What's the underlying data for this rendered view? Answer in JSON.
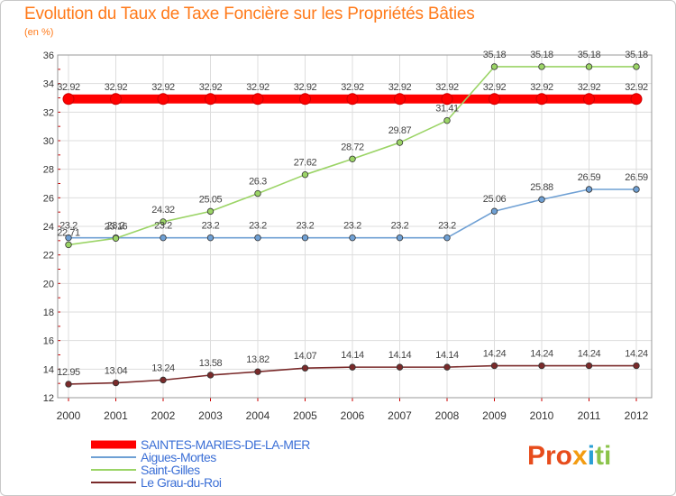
{
  "chart_data": {
    "type": "line",
    "title": "Evolution du Taux de Taxe Foncière sur les Propriétés Bâties",
    "subtitle": "(en %)",
    "x": [
      "2000",
      "2001",
      "2002",
      "2003",
      "2004",
      "2005",
      "2006",
      "2007",
      "2008",
      "2009",
      "2010",
      "2011",
      "2012"
    ],
    "ylim": [
      12,
      36
    ],
    "yticks": [
      12,
      14,
      16,
      18,
      20,
      22,
      24,
      26,
      28,
      30,
      32,
      34,
      36
    ],
    "grid": true,
    "legend_placement": "bottom-left",
    "series": [
      {
        "name": "SAINTES-MARIES-DE-LA-MER",
        "color": "#ff0000",
        "values": [
          32.92,
          32.92,
          32.92,
          32.92,
          32.92,
          32.92,
          32.92,
          32.92,
          32.92,
          32.92,
          32.92,
          32.92,
          32.92
        ],
        "labels": [
          "32.92",
          "32.92",
          "32.92",
          "32.92",
          "32.92",
          "32.92",
          "32.92",
          "32.92",
          "32.92",
          "32.92",
          "32.92",
          "32.92",
          "32.92"
        ]
      },
      {
        "name": "Aigues-Mortes",
        "color": "#6fa0d4",
        "values": [
          23.2,
          23.2,
          23.2,
          23.2,
          23.2,
          23.2,
          23.2,
          23.2,
          23.2,
          25.06,
          25.88,
          26.59,
          26.59
        ],
        "labels": [
          "23.2",
          "23.2",
          "23.2",
          "23.2",
          "23.2",
          "23.2",
          "23.2",
          "23.2",
          "23.2",
          "25.06",
          "25.88",
          "26.59",
          "26.59"
        ]
      },
      {
        "name": "Saint-Gilles",
        "color": "#9bd466",
        "values": [
          22.71,
          23.16,
          24.32,
          25.05,
          26.3,
          27.62,
          28.72,
          29.87,
          31.41,
          35.18,
          35.18,
          35.18,
          35.18
        ],
        "labels": [
          "22.71",
          "23.16",
          "24.32",
          "25.05",
          "26.3",
          "27.62",
          "28.72",
          "29.87",
          "31.41",
          "35.18",
          "35.18",
          "35.18",
          "35.18"
        ]
      },
      {
        "name": "Le Grau-du-Roi",
        "color": "#7a2a2a",
        "values": [
          12.95,
          13.04,
          13.24,
          13.58,
          13.82,
          14.07,
          14.14,
          14.14,
          14.14,
          14.24,
          14.24,
          14.24,
          14.24
        ],
        "labels": [
          "12.95",
          "13.04",
          "13.24",
          "13.58",
          "13.82",
          "14.07",
          "14.14",
          "14.14",
          "14.14",
          "14.24",
          "14.24",
          "14.24",
          "14.24"
        ]
      }
    ]
  },
  "logo": {
    "p1": "Pro",
    "p2": "x",
    "p3": "i",
    "p4": "ti"
  }
}
